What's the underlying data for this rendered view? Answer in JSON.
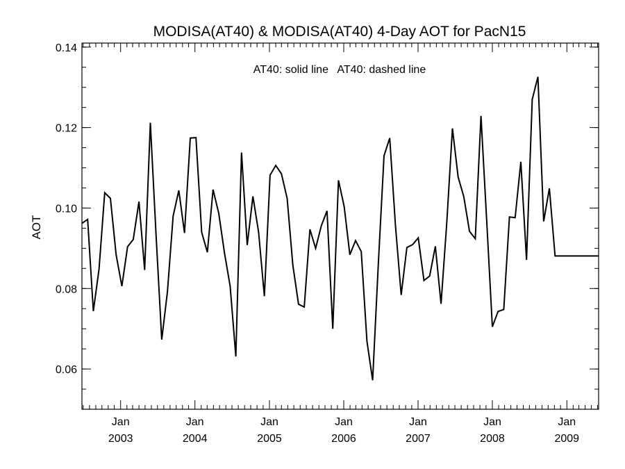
{
  "chart_data": {
    "type": "line",
    "title": "MODISA(AT40) & MODISA(AT40) 4-Day AOT for PacN15",
    "annotation": "AT40: solid line   AT40: dashed line",
    "xlabel": "",
    "ylabel": "AOT",
    "xlim": [
      "2002-06-25",
      "2009-06-06"
    ],
    "ylim": [
      0.05,
      0.141
    ],
    "y_ticks": [
      "0.06",
      "0.08",
      "0.10",
      "0.12",
      "0.14"
    ],
    "x_ticks": [
      {
        "date": "2003-01-01",
        "label1": "Jan",
        "label2": "2003"
      },
      {
        "date": "2004-01-01",
        "label1": "Jan",
        "label2": "2004"
      },
      {
        "date": "2005-01-01",
        "label1": "Jan",
        "label2": "2005"
      },
      {
        "date": "2006-01-01",
        "label1": "Jan",
        "label2": "2006"
      },
      {
        "date": "2007-01-01",
        "label1": "Jan",
        "label2": "2007"
      },
      {
        "date": "2008-01-01",
        "label1": "Jan",
        "label2": "2008"
      },
      {
        "date": "2009-01-01",
        "label1": "Jan",
        "label2": "2009"
      }
    ],
    "grid": false,
    "series": [
      {
        "style": "solid",
        "color": "#000000",
        "x": [
          "2002-06-25",
          "2002-07-23",
          "2002-08-20",
          "2002-09-17",
          "2002-10-15",
          "2002-11-12",
          "2002-12-10",
          "2003-01-07",
          "2003-02-04",
          "2003-03-04",
          "2003-04-01",
          "2003-04-29",
          "2003-05-27",
          "2003-06-24",
          "2003-07-22",
          "2003-08-19",
          "2003-09-16",
          "2003-10-14",
          "2003-11-11",
          "2003-12-09",
          "2004-01-06",
          "2004-02-03",
          "2004-03-02",
          "2004-03-30",
          "2004-04-27",
          "2004-05-25",
          "2004-06-22",
          "2004-07-20",
          "2004-08-17",
          "2004-09-14",
          "2004-10-12",
          "2004-11-09",
          "2004-12-07",
          "2005-01-04",
          "2005-02-01",
          "2005-03-01",
          "2005-03-29",
          "2005-04-26",
          "2005-05-24",
          "2005-06-21",
          "2005-07-19",
          "2005-08-16",
          "2005-09-13",
          "2005-10-11",
          "2005-11-08",
          "2005-12-06",
          "2006-01-03",
          "2006-01-31",
          "2006-02-28",
          "2006-03-28",
          "2006-04-25",
          "2006-05-23",
          "2006-06-20",
          "2006-07-18",
          "2006-08-15",
          "2006-09-12",
          "2006-10-10",
          "2006-11-07",
          "2006-12-05",
          "2007-01-02",
          "2007-01-30",
          "2007-02-27",
          "2007-03-27",
          "2007-04-24",
          "2007-05-22",
          "2007-06-19",
          "2007-07-17",
          "2007-08-14",
          "2007-09-11",
          "2007-10-09",
          "2007-11-06",
          "2007-12-04",
          "2008-01-01",
          "2008-01-29",
          "2008-02-26",
          "2008-03-25",
          "2008-04-22",
          "2008-05-20",
          "2008-06-17",
          "2008-07-15",
          "2008-08-12",
          "2008-09-09",
          "2008-10-07",
          "2008-11-04",
          "2008-12-02",
          "2008-12-30",
          "2009-01-27",
          "2009-02-24",
          "2009-03-24",
          "2009-04-21",
          "2009-05-19",
          "2009-06-06"
        ],
        "values": [
          0.0962,
          0.0972,
          0.0744,
          0.0848,
          0.1038,
          0.1024,
          0.0884,
          0.0806,
          0.0904,
          0.0922,
          0.1016,
          0.0846,
          0.1212,
          0.0934,
          0.0673,
          0.0792,
          0.098,
          0.1044,
          0.0938,
          0.1174,
          0.1175,
          0.094,
          0.089,
          0.1046,
          0.0987,
          0.0889,
          0.0806,
          0.0631,
          0.1138,
          0.0908,
          0.1029,
          0.094,
          0.0781,
          0.1082,
          0.1106,
          0.1085,
          0.1024,
          0.0858,
          0.0761,
          0.0754,
          0.0947,
          0.09,
          0.0956,
          0.0993,
          0.07,
          0.1069,
          0.1004,
          0.0884,
          0.0919,
          0.0892,
          0.0669,
          0.0572,
          0.0862,
          0.113,
          0.1174,
          0.0958,
          0.0784,
          0.0902,
          0.0909,
          0.0926,
          0.082,
          0.0831,
          0.0905,
          0.0762,
          0.0962,
          0.1198,
          0.1077,
          0.1028,
          0.0942,
          0.0924,
          0.1229,
          0.097,
          0.0705,
          0.0743,
          0.0748,
          0.0978,
          0.0976,
          0.1115,
          0.0871,
          0.127,
          0.1326,
          0.0967,
          0.1049,
          0.0881,
          0.0881,
          0.0881,
          0.0881,
          0.0881,
          0.0881,
          0.0881,
          0.0881,
          0.0881
        ]
      }
    ]
  }
}
